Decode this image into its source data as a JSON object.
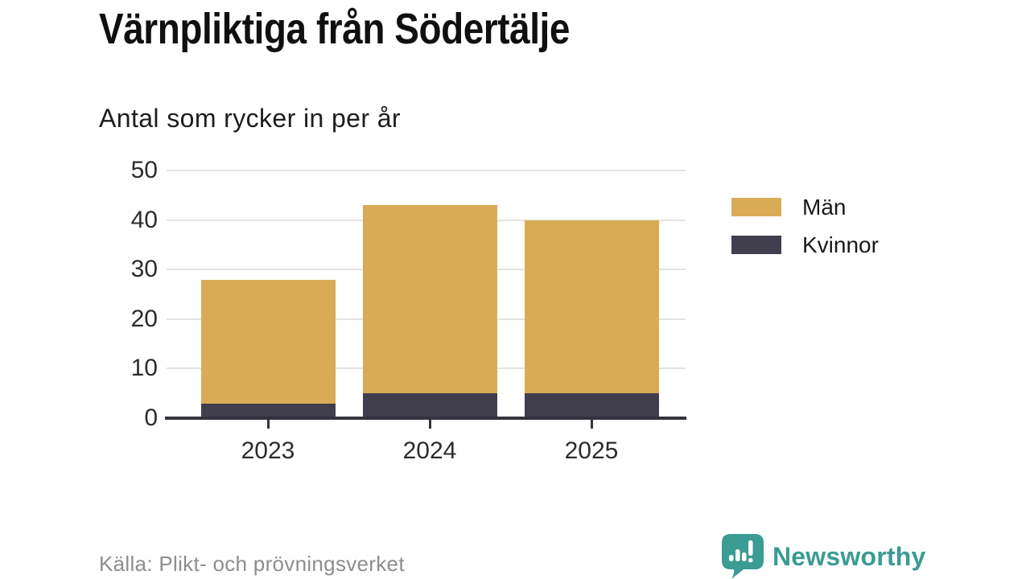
{
  "chart_data": {
    "type": "bar",
    "stacked": true,
    "title": "Värnpliktiga från Södertälje",
    "subtitle": "Antal som rycker in per år",
    "categories": [
      "2023",
      "2024",
      "2025"
    ],
    "series": [
      {
        "name": "Män",
        "color": "#d9ab57",
        "values": [
          25,
          38,
          35
        ]
      },
      {
        "name": "Kvinnor",
        "color": "#413f4e",
        "values": [
          3,
          5,
          5
        ]
      }
    ],
    "stack_totals": [
      28,
      43,
      40
    ],
    "xlabel": "",
    "ylabel": "",
    "ylim": [
      0,
      50
    ],
    "yticks": [
      0,
      10,
      20,
      30,
      40,
      50
    ],
    "grid": true,
    "legend_position": "right"
  },
  "footer": {
    "source": "Källa: Plikt- och prövningsverket"
  },
  "logo": {
    "text": "Newsworthy",
    "icon": "newsworthy-speech-bubble-chart-icon"
  },
  "colors": {
    "bar_men_gold": "#d9ab57",
    "bar_women_dark": "#413f4e",
    "brand_teal": "#3a9c93",
    "axis": "#34323d",
    "gridline": "#e3e3e3",
    "muted_text": "#8d8d8d"
  }
}
